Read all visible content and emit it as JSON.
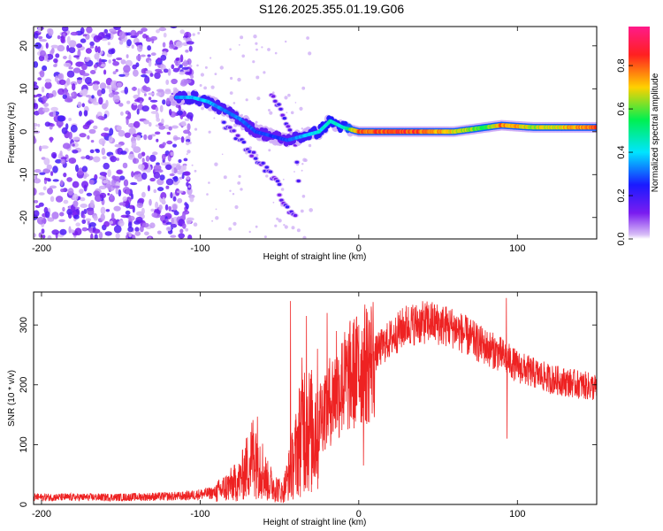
{
  "title": "S126.2025.355.01.19.G06",
  "chart_data": [
    {
      "type": "heatmap",
      "name": "spectrogram",
      "xlabel": "Height of straight line (km)",
      "ylabel": "Frequency (Hz)",
      "xlim": [
        -205,
        150
      ],
      "ylim": [
        -25,
        24.5
      ],
      "xticks": [
        -200,
        -100,
        0,
        100
      ],
      "yticks": [
        -20,
        -10,
        0,
        10,
        20
      ],
      "colorbar": {
        "label": "Normalized spectral amplitude",
        "range": [
          0,
          0.98
        ],
        "ticks": [
          "0.0",
          "0.2",
          "0.4",
          "0.6",
          "0.8"
        ],
        "tick_values": [
          0.0,
          0.2,
          0.4,
          0.6,
          0.8
        ],
        "colors": [
          "#ffffff",
          "#d9bff7",
          "#7a1cf0",
          "#1a1aff",
          "#00e5ff",
          "#00f050",
          "#ffd000",
          "#ff2020",
          "#ff1a8a"
        ],
        "color_stops": [
          0.0,
          0.02,
          0.12,
          0.25,
          0.4,
          0.55,
          0.7,
          0.85,
          0.98
        ]
      },
      "noise_region": {
        "x_range": [
          -205,
          -105
        ],
        "y_range": [
          -25,
          24.5
        ],
        "amplitude": [
          0.02,
          0.2
        ]
      },
      "dominant_track": [
        {
          "x": -115,
          "y": 8,
          "amp": 0.35
        },
        {
          "x": -105,
          "y": 8,
          "amp": 0.4
        },
        {
          "x": -95,
          "y": 7,
          "amp": 0.4
        },
        {
          "x": -85,
          "y": 5,
          "amp": 0.35
        },
        {
          "x": -75,
          "y": 3,
          "amp": 0.35
        },
        {
          "x": -65,
          "y": 0,
          "amp": 0.3
        },
        {
          "x": -55,
          "y": -1,
          "amp": 0.3
        },
        {
          "x": -45,
          "y": -2,
          "amp": 0.3
        },
        {
          "x": -35,
          "y": -1,
          "amp": 0.4
        },
        {
          "x": -25,
          "y": 0,
          "amp": 0.45
        },
        {
          "x": -18,
          "y": 2.5,
          "amp": 0.5
        },
        {
          "x": -10,
          "y": 1,
          "amp": 0.45
        },
        {
          "x": 0,
          "y": 0,
          "amp": 0.85
        },
        {
          "x": 30,
          "y": 0,
          "amp": 0.9
        },
        {
          "x": 60,
          "y": 0,
          "amp": 0.75
        },
        {
          "x": 80,
          "y": 1,
          "amp": 0.6
        },
        {
          "x": 90,
          "y": 1.5,
          "amp": 0.85
        },
        {
          "x": 110,
          "y": 1,
          "amp": 0.7
        },
        {
          "x": 150,
          "y": 1,
          "amp": 0.85
        }
      ],
      "secondary_tracks": [
        [
          {
            "x": -85,
            "y": 2
          },
          {
            "x": -75,
            "y": -2
          },
          {
            "x": -65,
            "y": -6
          },
          {
            "x": -58,
            "y": -9
          },
          {
            "x": -50,
            "y": -12
          }
        ],
        [
          {
            "x": -55,
            "y": 9
          },
          {
            "x": -48,
            "y": 4
          },
          {
            "x": -40,
            "y": -3
          },
          {
            "x": -38,
            "y": -12
          }
        ],
        [
          {
            "x": -50,
            "y": -15
          },
          {
            "x": -40,
            "y": -20
          }
        ]
      ]
    },
    {
      "type": "line",
      "name": "snr",
      "xlabel": "Height of straight line (km)",
      "ylabel": "SNR (10 * v/v)",
      "xlim": [
        -205,
        150
      ],
      "ylim": [
        0,
        355
      ],
      "xticks": [
        -200,
        -100,
        0,
        100
      ],
      "yticks": [
        0,
        100,
        200,
        300
      ],
      "color": "#ee2222",
      "envelope": [
        {
          "x": -205,
          "y": 12
        },
        {
          "x": -150,
          "y": 12
        },
        {
          "x": -110,
          "y": 14
        },
        {
          "x": -90,
          "y": 20
        },
        {
          "x": -75,
          "y": 40
        },
        {
          "x": -65,
          "y": 90
        },
        {
          "x": -58,
          "y": 40
        },
        {
          "x": -48,
          "y": 20
        },
        {
          "x": -40,
          "y": 80
        },
        {
          "x": -35,
          "y": 140
        },
        {
          "x": -30,
          "y": 120
        },
        {
          "x": -22,
          "y": 160
        },
        {
          "x": -15,
          "y": 185
        },
        {
          "x": -5,
          "y": 215
        },
        {
          "x": 5,
          "y": 235
        },
        {
          "x": 15,
          "y": 265
        },
        {
          "x": 30,
          "y": 300
        },
        {
          "x": 45,
          "y": 305
        },
        {
          "x": 60,
          "y": 295
        },
        {
          "x": 75,
          "y": 270
        },
        {
          "x": 90,
          "y": 250
        },
        {
          "x": 100,
          "y": 230
        },
        {
          "x": 120,
          "y": 210
        },
        {
          "x": 150,
          "y": 195
        }
      ],
      "spikes": [
        {
          "x": -43,
          "y": 340
        },
        {
          "x": -33,
          "y": 315
        },
        {
          "x": -20,
          "y": 320
        },
        {
          "x": -14,
          "y": 290
        },
        {
          "x": -10,
          "y": 270
        },
        {
          "x": 0,
          "y": 300
        },
        {
          "x": 3,
          "y": 65
        },
        {
          "x": 93,
          "y": 345
        },
        {
          "x": 93.5,
          "y": 110
        }
      ]
    }
  ]
}
